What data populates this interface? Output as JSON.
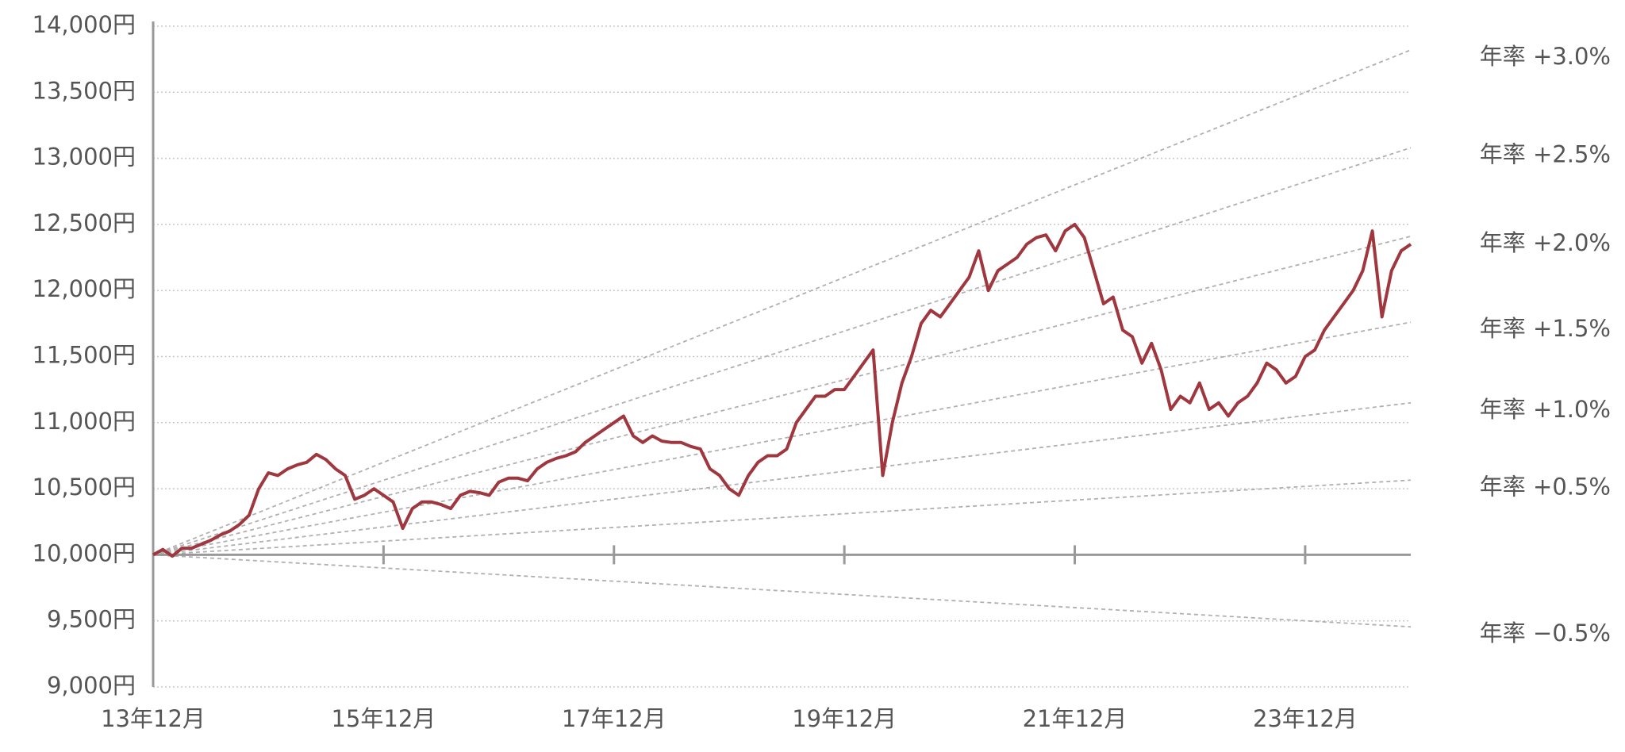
{
  "chart_data": {
    "type": "line",
    "categories": [
      "13年12月",
      null,
      null,
      null,
      null,
      null,
      null,
      null,
      null,
      null,
      null,
      null,
      null,
      null,
      null,
      null,
      null,
      null,
      null,
      null,
      null,
      null,
      null,
      null,
      "15年12月",
      null,
      null,
      null,
      null,
      null,
      null,
      null,
      null,
      null,
      null,
      null,
      null,
      null,
      null,
      null,
      null,
      null,
      null,
      null,
      null,
      null,
      null,
      null,
      "17年12月",
      null,
      null,
      null,
      null,
      null,
      null,
      null,
      null,
      null,
      null,
      null,
      null,
      null,
      null,
      null,
      null,
      null,
      null,
      null,
      null,
      null,
      null,
      null,
      "19年12月",
      null,
      null,
      null,
      null,
      null,
      null,
      null,
      null,
      null,
      null,
      null,
      null,
      null,
      null,
      null,
      null,
      null,
      null,
      null,
      null,
      null,
      null,
      null,
      "21年12月",
      null,
      null,
      null,
      null,
      null,
      null,
      null,
      null,
      null,
      null,
      null,
      null,
      null,
      null,
      null,
      null,
      null,
      null,
      null,
      null,
      null,
      null,
      null,
      "23年12月",
      null,
      null,
      null,
      null,
      null,
      null,
      null,
      null,
      null,
      null,
      null
    ],
    "series": [
      {
        "color": "#a0363e",
        "values": [
          10000,
          10040,
          9990,
          10050,
          10050,
          10080,
          10110,
          10150,
          10180,
          10230,
          10300,
          10500,
          10620,
          10600,
          10650,
          10680,
          10700,
          10760,
          10720,
          10650,
          10600,
          10420,
          10450,
          10500,
          10450,
          10400,
          10200,
          10350,
          10400,
          10400,
          10380,
          10350,
          10450,
          10480,
          10470,
          10450,
          10550,
          10580,
          10580,
          10560,
          10650,
          10700,
          10730,
          10750,
          10780,
          10850,
          10900,
          10950,
          11000,
          11050,
          10900,
          10850,
          10900,
          10860,
          10850,
          10850,
          10820,
          10800,
          10650,
          10600,
          10500,
          10450,
          10600,
          10700,
          10750,
          10750,
          10800,
          11000,
          11100,
          11200,
          11200,
          11250,
          11250,
          11350,
          11450,
          11550,
          10600,
          11000,
          11300,
          11500,
          11750,
          11850,
          11800,
          11900,
          12000,
          12100,
          12300,
          12000,
          12150,
          12200,
          12250,
          12350,
          12400,
          12420,
          12300,
          12450,
          12500,
          12400,
          12150,
          11900,
          11950,
          11700,
          11650,
          11450,
          11600,
          11400,
          11100,
          11200,
          11150,
          11300,
          11100,
          11150,
          11050,
          11150,
          11200,
          11300,
          11450,
          11400,
          11300,
          11350,
          11500,
          11550,
          11700,
          11800,
          11900,
          12000,
          12150,
          12450,
          11800,
          12150,
          12300,
          12350
        ]
      }
    ],
    "reference_lines": [
      {
        "name": "年率 +3.0%",
        "values": [
          10000,
          13820
        ]
      },
      {
        "name": "年率 +2.5%",
        "values": [
          10000,
          13080
        ]
      },
      {
        "name": "年率 +2.0%",
        "values": [
          10000,
          12410
        ]
      },
      {
        "name": "年率 +1.5%",
        "values": [
          10000,
          11760
        ]
      },
      {
        "name": "年率 +1.0%",
        "values": [
          10000,
          11150
        ]
      },
      {
        "name": "年率 +0.5%",
        "values": [
          10000,
          10565
        ]
      },
      {
        "name": "年率 −0.5%",
        "values": [
          10000,
          9455
        ]
      }
    ],
    "reference_color": "#b0b0b0",
    "ylim": [
      9000,
      14000
    ],
    "yticks": [
      {
        "value": 9000,
        "label": "9,000円"
      },
      {
        "value": 9500,
        "label": "9,500円"
      },
      {
        "value": 10000,
        "label": "10,000円"
      },
      {
        "value": 10500,
        "label": "10,500円"
      },
      {
        "value": 11000,
        "label": "11,000円"
      },
      {
        "value": 11500,
        "label": "11,500円"
      },
      {
        "value": 12000,
        "label": "12,000円"
      },
      {
        "value": 12500,
        "label": "12,500円"
      },
      {
        "value": 13000,
        "label": "13,000円"
      },
      {
        "value": 13500,
        "label": "13,500円"
      },
      {
        "value": 14000,
        "label": "14,000円"
      }
    ],
    "grid": true
  }
}
